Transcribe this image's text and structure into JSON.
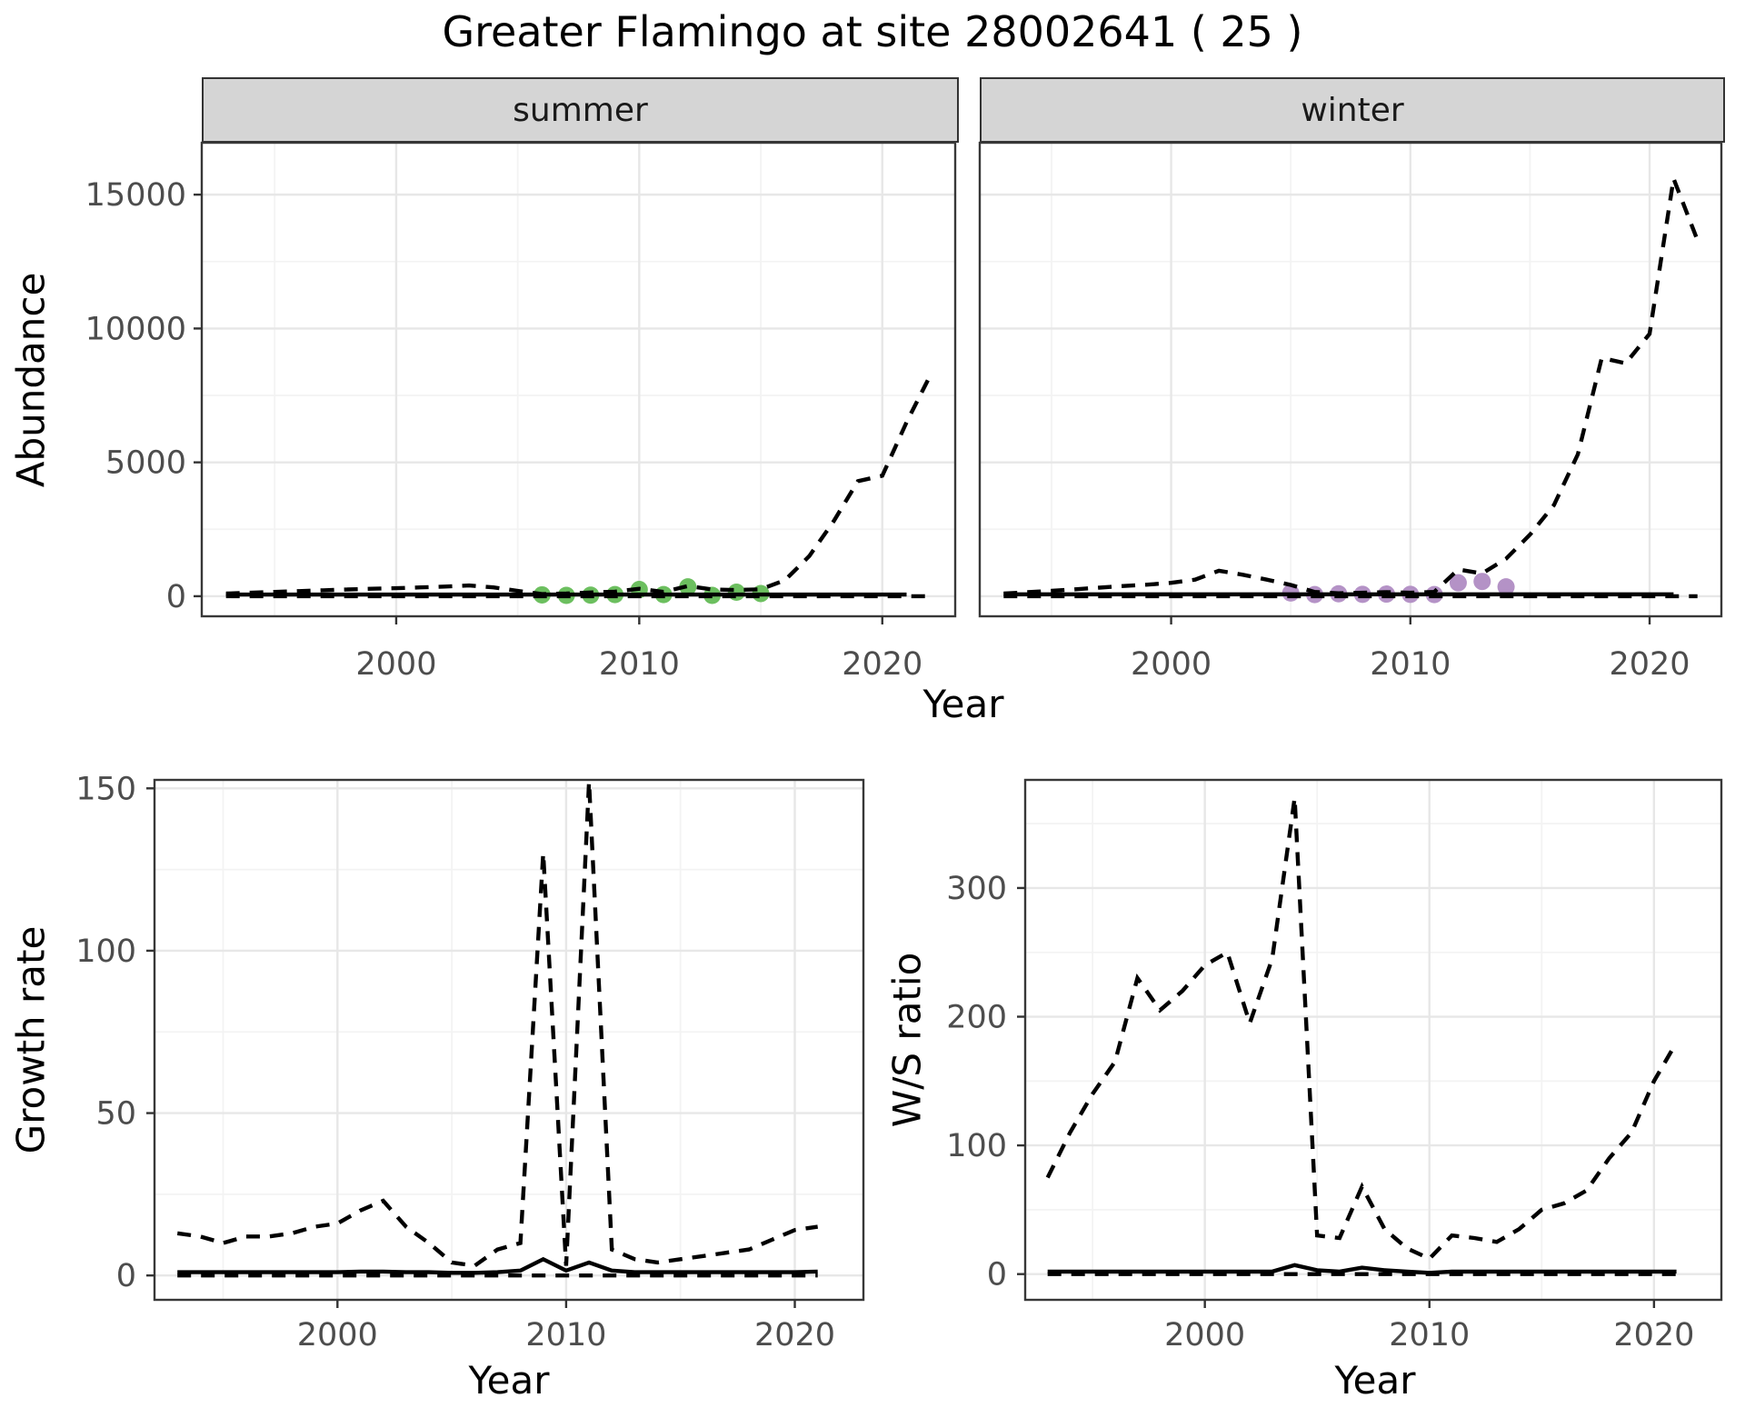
{
  "title": "Greater Flamingo at site 28002641 ( 25 )",
  "facets": {
    "summer": "summer",
    "winter": "winter"
  },
  "axis_titles": {
    "abundance_y": "Abundance",
    "top_x": "Year",
    "growth_y": "Growth rate",
    "growth_x": "Year",
    "ratio_y": "W/S ratio",
    "ratio_x": "Year"
  },
  "colors": {
    "line": "#000000",
    "summer_points": "#6cbf5f",
    "winter_points": "#b492c6",
    "strip_bg": "#d5d5d5",
    "strip_border": "#333333",
    "panel_border": "#383838",
    "grid_major": "#e7e7e7",
    "grid_minor": "#f3f3f3",
    "tick_mark": "#333333",
    "tick_label": "#4d4d4d"
  },
  "chart_data": [
    {
      "id": "abundance-summer",
      "type": "line",
      "facet": "summer",
      "xlabel": "Year",
      "ylabel": "Abundance",
      "x_domain": [
        1992,
        2023
      ],
      "x_tick_values": [
        2000,
        2010,
        2020
      ],
      "x_tick_labels": [
        "2000",
        "2010",
        "2020"
      ],
      "x_minor": [
        1995,
        2005,
        2015
      ],
      "ylim": [
        -750,
        16940
      ],
      "y_tick_values": [
        0,
        5000,
        10000,
        15000
      ],
      "y_tick_labels": [
        "0",
        "5000",
        "10000",
        "15000"
      ],
      "y_minor": [
        2500,
        7500,
        12500
      ],
      "grid": true,
      "legend": "none",
      "series": [
        {
          "name": "floor-dashed",
          "style": "dashed",
          "years": [
            1993,
            2022
          ],
          "values": [
            0,
            0
          ]
        },
        {
          "name": "trend-solid",
          "style": "solid",
          "years": [
            1993,
            2021
          ],
          "values": [
            60,
            60
          ]
        },
        {
          "name": "annual-index-dashed",
          "style": "dashed",
          "years": [
            1993,
            1994,
            1995,
            1996,
            1997,
            1998,
            1999,
            2000,
            2001,
            2002,
            2003,
            2004,
            2005,
            2006,
            2007,
            2008,
            2009,
            2010,
            2011,
            2012,
            2013,
            2014,
            2015,
            2016,
            2017,
            2018,
            2019,
            2020,
            2021,
            2022
          ],
          "values": [
            100,
            130,
            160,
            190,
            220,
            250,
            280,
            300,
            330,
            360,
            400,
            330,
            200,
            80,
            100,
            140,
            170,
            280,
            160,
            380,
            250,
            230,
            260,
            600,
            1500,
            2800,
            4300,
            4500,
            6500,
            8300
          ]
        }
      ],
      "points": {
        "name": "observed-counts-summer",
        "color_key": "summer_points",
        "years": [
          2006,
          2007,
          2008,
          2009,
          2010,
          2011,
          2012,
          2013,
          2014,
          2015
        ],
        "values": [
          50,
          30,
          40,
          60,
          250,
          60,
          350,
          30,
          150,
          100
        ]
      }
    },
    {
      "id": "abundance-winter",
      "type": "line",
      "facet": "winter",
      "xlabel": "Year",
      "ylabel": "Abundance",
      "x_domain": [
        1992,
        2023
      ],
      "x_tick_values": [
        2000,
        2010,
        2020
      ],
      "x_tick_labels": [
        "2000",
        "2010",
        "2020"
      ],
      "x_minor": [
        1995,
        2005,
        2015
      ],
      "ylim": [
        -750,
        16940
      ],
      "y_tick_values": [
        0,
        5000,
        10000,
        15000
      ],
      "y_tick_labels": [
        "0",
        "5000",
        "10000",
        "15000"
      ],
      "y_minor": [
        2500,
        7500,
        12500
      ],
      "grid": true,
      "legend": "none",
      "series": [
        {
          "name": "floor-dashed",
          "style": "dashed",
          "years": [
            1993,
            2022
          ],
          "values": [
            0,
            0
          ]
        },
        {
          "name": "trend-solid",
          "style": "solid",
          "years": [
            1993,
            2021
          ],
          "values": [
            70,
            70
          ]
        },
        {
          "name": "annual-index-dashed",
          "style": "dashed",
          "years": [
            1993,
            1994,
            1995,
            1996,
            1997,
            1998,
            1999,
            2000,
            2001,
            2002,
            2003,
            2004,
            2005,
            2006,
            2007,
            2008,
            2009,
            2010,
            2011,
            2012,
            2013,
            2014,
            2015,
            2016,
            2017,
            2018,
            2019,
            2020,
            2021,
            2022
          ],
          "values": [
            100,
            150,
            200,
            260,
            320,
            380,
            430,
            500,
            620,
            950,
            800,
            620,
            420,
            160,
            110,
            130,
            150,
            130,
            160,
            1000,
            850,
            1400,
            2300,
            3400,
            5300,
            8900,
            8700,
            9800,
            15600,
            13300
          ]
        }
      ],
      "points": {
        "name": "observed-counts-winter",
        "color_key": "winter_points",
        "years": [
          2005,
          2006,
          2007,
          2008,
          2009,
          2010,
          2011,
          2012,
          2013,
          2014
        ],
        "values": [
          120,
          60,
          90,
          70,
          80,
          70,
          60,
          500,
          550,
          350
        ]
      }
    },
    {
      "id": "growth-rate",
      "type": "line",
      "xlabel": "Year",
      "ylabel": "Growth rate",
      "x_domain": [
        1992,
        2023
      ],
      "x_tick_values": [
        2000,
        2010,
        2020
      ],
      "x_tick_labels": [
        "2000",
        "2010",
        "2020"
      ],
      "x_minor": [
        1995,
        2005,
        2015
      ],
      "ylim": [
        -7.5,
        152.6
      ],
      "y_tick_values": [
        0,
        50,
        100,
        150
      ],
      "y_tick_labels": [
        "0",
        "50",
        "100",
        "150"
      ],
      "y_minor": [
        25,
        75,
        125
      ],
      "grid": true,
      "legend": "none",
      "series": [
        {
          "name": "floor-dashed",
          "style": "dashed",
          "years": [
            1993,
            2021
          ],
          "values": [
            0,
            0
          ]
        },
        {
          "name": "trend-solid",
          "style": "solid",
          "years": [
            1993,
            1994,
            1995,
            1996,
            1997,
            1998,
            1999,
            2000,
            2001,
            2002,
            2003,
            2004,
            2005,
            2006,
            2007,
            2008,
            2009,
            2010,
            2011,
            2012,
            2013,
            2014,
            2015,
            2016,
            2017,
            2018,
            2019,
            2020,
            2021
          ],
          "values": [
            1,
            1,
            1,
            1,
            1,
            1,
            1,
            1,
            1.2,
            1.2,
            1,
            1,
            0.8,
            0.8,
            1,
            1.5,
            5,
            1.5,
            4,
            1.5,
            1,
            1,
            1,
            1,
            1,
            1,
            1,
            1,
            1.2
          ]
        },
        {
          "name": "annual-ratio-dashed",
          "style": "dashed",
          "years": [
            1993,
            1994,
            1995,
            1996,
            1997,
            1998,
            1999,
            2000,
            2001,
            2002,
            2003,
            2004,
            2005,
            2006,
            2007,
            2008,
            2009,
            2010,
            2011,
            2012,
            2013,
            2014,
            2015,
            2016,
            2017,
            2018,
            2019,
            2020,
            2021
          ],
          "values": [
            13,
            12,
            10,
            12,
            12,
            13,
            15,
            16,
            20,
            23,
            15,
            10,
            4,
            3,
            8,
            10,
            130,
            3,
            152,
            8,
            5,
            4,
            5,
            6,
            7,
            8,
            11,
            14,
            15
          ]
        }
      ]
    },
    {
      "id": "ws-ratio",
      "type": "line",
      "xlabel": "Year",
      "ylabel": "W/S ratio",
      "x_domain": [
        1992,
        2023
      ],
      "x_tick_values": [
        2000,
        2010,
        2020
      ],
      "x_tick_labels": [
        "2000",
        "2010",
        "2020"
      ],
      "x_minor": [
        1995,
        2005,
        2015
      ],
      "ylim": [
        -20,
        384
      ],
      "y_tick_values": [
        0,
        100,
        200,
        300
      ],
      "y_tick_labels": [
        "0",
        "100",
        "200",
        "300"
      ],
      "y_minor": [
        50,
        150,
        250,
        350
      ],
      "grid": true,
      "legend": "none",
      "series": [
        {
          "name": "floor-dashed",
          "style": "dashed",
          "years": [
            1993,
            2021
          ],
          "values": [
            0,
            0
          ]
        },
        {
          "name": "trend-solid",
          "style": "solid",
          "years": [
            1993,
            1994,
            1995,
            1996,
            1997,
            1998,
            1999,
            2000,
            2001,
            2002,
            2003,
            2004,
            2005,
            2006,
            2007,
            2008,
            2009,
            2010,
            2011,
            2012,
            2013,
            2014,
            2015,
            2016,
            2017,
            2018,
            2019,
            2020,
            2021
          ],
          "values": [
            2,
            2,
            2,
            2,
            2,
            2,
            2,
            2,
            2,
            2,
            2,
            7,
            3,
            2,
            5,
            3,
            2,
            1,
            2,
            2,
            2,
            2,
            2,
            2,
            2,
            2,
            2,
            2,
            2
          ]
        },
        {
          "name": "annual-ratio-dashed",
          "style": "dashed",
          "years": [
            1993,
            1994,
            1995,
            1996,
            1997,
            1998,
            1999,
            2000,
            2001,
            2002,
            2003,
            2004,
            2005,
            2006,
            2007,
            2008,
            2009,
            2010,
            2011,
            2012,
            2013,
            2014,
            2015,
            2016,
            2017,
            2018,
            2019,
            2020,
            2021
          ],
          "values": [
            75,
            110,
            140,
            165,
            230,
            205,
            220,
            240,
            250,
            195,
            245,
            370,
            30,
            28,
            68,
            35,
            20,
            12,
            30,
            28,
            25,
            35,
            50,
            55,
            65,
            90,
            110,
            150,
            180
          ]
        }
      ]
    }
  ]
}
